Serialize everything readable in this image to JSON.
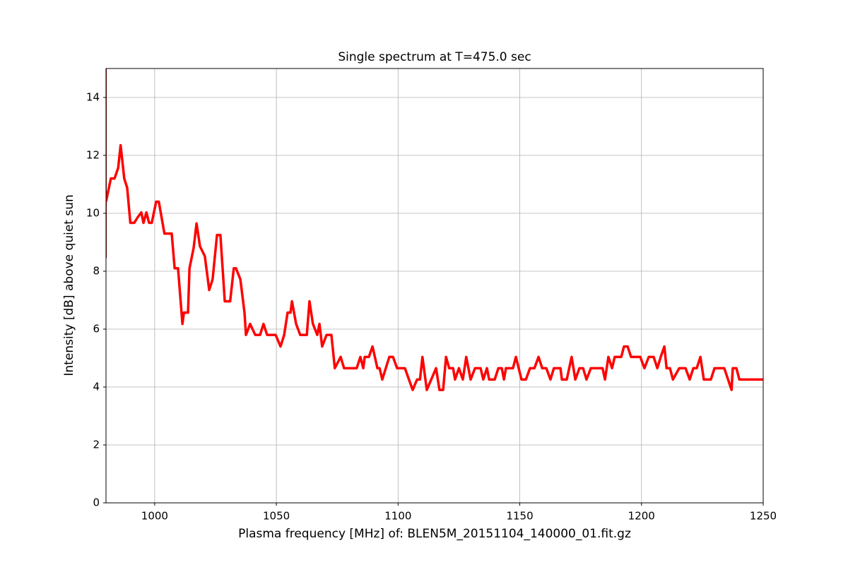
{
  "chart_data": {
    "type": "line",
    "title": "Single spectrum at T=475.0 sec",
    "x_label": "Plasma frequency [MHz] of: BLEN5M_20151104_140000_01.fit.gz",
    "y_label": "Intensity [dB] above quiet sun",
    "xlim": [
      980,
      1250
    ],
    "ylim": [
      0,
      15
    ],
    "xticks": [
      1000,
      1050,
      1100,
      1150,
      1200,
      1250
    ],
    "yticks": [
      0,
      2,
      4,
      6,
      8,
      10,
      12,
      14
    ],
    "grid": true,
    "series": [
      {
        "color": "#8b0000",
        "x": [
          980,
          980
        ],
        "values": [
          8.45,
          15
        ]
      },
      {
        "color": "#ff0000",
        "x": [
          980,
          982,
          983.5,
          985,
          986,
          987.5,
          988.7,
          990,
          991.6,
          993,
          994.5,
          995.4,
          996.6,
          997.7,
          998.8,
          1000.6,
          1001.7,
          1004,
          1007,
          1008.2,
          1009.6,
          1011.4,
          1012,
          1013.7,
          1014.3,
          1016,
          1017.2,
          1018.6,
          1020.6,
          1022.4,
          1023.8,
          1025.6,
          1027,
          1028.8,
          1031,
          1032.5,
          1033.4,
          1035.2,
          1036.9,
          1037.5,
          1039.2,
          1041.3,
          1043.3,
          1044.7,
          1046.2,
          1049.7,
          1051.7,
          1053.2,
          1054.6,
          1055.8,
          1056.4,
          1058.1,
          1059.8,
          1062.5,
          1063.6,
          1065,
          1066.8,
          1067.7,
          1068.8,
          1070.6,
          1072.6,
          1074,
          1076.4,
          1077.8,
          1083,
          1084.5,
          1085.7,
          1086.3,
          1088,
          1089.5,
          1091.5,
          1092.4,
          1093.5,
          1096.4,
          1097.9,
          1099.6,
          1102.8,
          1106,
          1107.8,
          1109,
          1110,
          1111.8,
          1115.6,
          1117,
          1118.5,
          1119.7,
          1121,
          1122.6,
          1123.4,
          1125,
          1126.6,
          1128,
          1129.8,
          1131.6,
          1133.9,
          1135,
          1136.5,
          1137.4,
          1139.7,
          1141.2,
          1142.6,
          1143.5,
          1144.3,
          1147.2,
          1148.4,
          1150.7,
          1152.5,
          1154.2,
          1156,
          1157.7,
          1159.2,
          1160.9,
          1162.6,
          1164,
          1166.7,
          1167.3,
          1169.3,
          1171.3,
          1172.8,
          1174.5,
          1176,
          1177.4,
          1179.2,
          1184,
          1185,
          1186.4,
          1187.9,
          1189,
          1191.7,
          1192.8,
          1194.3,
          1195.7,
          1199.5,
          1201.2,
          1203,
          1205,
          1206.5,
          1207.9,
          1209.4,
          1210.3,
          1211.7,
          1212.9,
          1215.5,
          1218.1,
          1219.8,
          1221.3,
          1222.7,
          1224.2,
          1225.6,
          1228.5,
          1230,
          1234,
          1237,
          1237.5,
          1239,
          1240.2,
          1250
        ],
        "values": [
          10.4,
          11.2,
          11.2,
          11.57,
          12.35,
          11.2,
          10.88,
          9.67,
          9.67,
          9.86,
          10.03,
          9.67,
          10.03,
          9.67,
          9.67,
          10.4,
          10.4,
          9.3,
          9.3,
          8.1,
          8.1,
          6.18,
          6.57,
          6.57,
          8.1,
          8.8,
          9.65,
          8.86,
          8.52,
          7.35,
          7.72,
          9.25,
          9.25,
          6.96,
          6.96,
          8.1,
          8.1,
          7.72,
          6.57,
          5.8,
          6.18,
          5.8,
          5.8,
          6.18,
          5.8,
          5.8,
          5.4,
          5.8,
          6.57,
          6.57,
          6.96,
          6.18,
          5.8,
          5.8,
          6.96,
          6.18,
          5.8,
          6.18,
          5.4,
          5.8,
          5.8,
          4.65,
          5.04,
          4.65,
          4.65,
          5.04,
          4.65,
          5.04,
          5.04,
          5.4,
          4.65,
          4.65,
          4.26,
          5.04,
          5.04,
          4.65,
          4.65,
          3.9,
          4.26,
          4.26,
          5.04,
          3.9,
          4.65,
          3.9,
          3.9,
          5.04,
          4.65,
          4.65,
          4.26,
          4.65,
          4.26,
          5.04,
          4.26,
          4.65,
          4.65,
          4.26,
          4.65,
          4.26,
          4.26,
          4.65,
          4.65,
          4.26,
          4.65,
          4.65,
          5.04,
          4.26,
          4.26,
          4.65,
          4.65,
          5.04,
          4.65,
          4.65,
          4.26,
          4.65,
          4.65,
          4.26,
          4.26,
          5.04,
          4.26,
          4.65,
          4.65,
          4.26,
          4.65,
          4.65,
          4.26,
          5.04,
          4.65,
          5.04,
          5.04,
          5.4,
          5.4,
          5.04,
          5.04,
          4.65,
          5.04,
          5.04,
          4.65,
          5.04,
          5.4,
          4.65,
          4.65,
          4.26,
          4.65,
          4.65,
          4.26,
          4.65,
          4.65,
          5.04,
          4.26,
          4.26,
          4.65,
          4.65,
          3.9,
          4.65,
          4.65,
          4.26,
          4.26
        ]
      }
    ]
  }
}
